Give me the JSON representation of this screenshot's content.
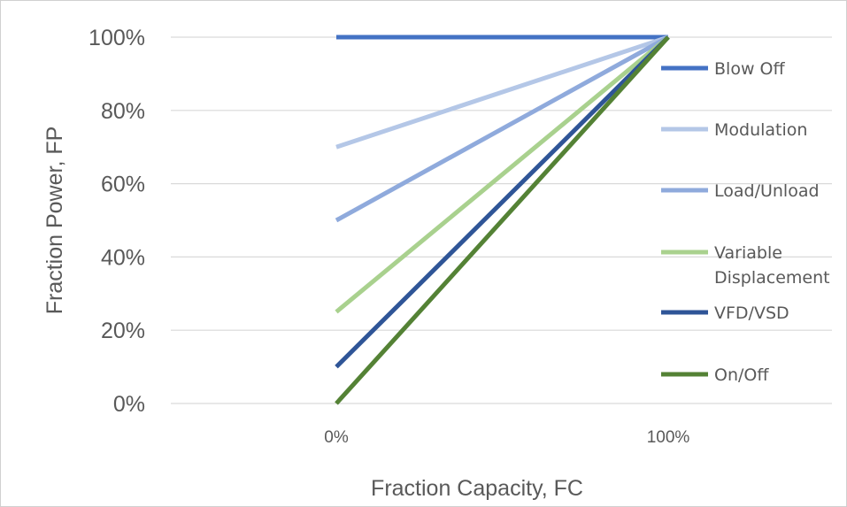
{
  "chart_data": {
    "type": "line",
    "xlabel": "Fraction Capacity, FC",
    "ylabel": "Fraction Power, FP",
    "x": [
      "0%",
      "100%"
    ],
    "ylim": [
      0,
      100
    ],
    "yticks": [
      "0%",
      "20%",
      "40%",
      "60%",
      "80%",
      "100%"
    ],
    "yticks_values": [
      0,
      20,
      40,
      60,
      80,
      100
    ],
    "grid": true,
    "legend_position": "right",
    "series": [
      {
        "name": "Blow Off",
        "values": [
          100,
          100
        ],
        "color": "#4472C4"
      },
      {
        "name": "Modulation",
        "values": [
          70,
          100
        ],
        "color": "#B4C7E7"
      },
      {
        "name": "Load/Unload",
        "values": [
          50,
          100
        ],
        "color": "#8FAADC"
      },
      {
        "name": "Variable Displacement",
        "values": [
          25,
          100
        ],
        "color": "#A9D18E"
      },
      {
        "name": "VFD/VSD",
        "values": [
          10,
          100
        ],
        "color": "#2F5597"
      },
      {
        "name": "On/Off",
        "values": [
          0,
          100
        ],
        "color": "#548235"
      }
    ]
  }
}
